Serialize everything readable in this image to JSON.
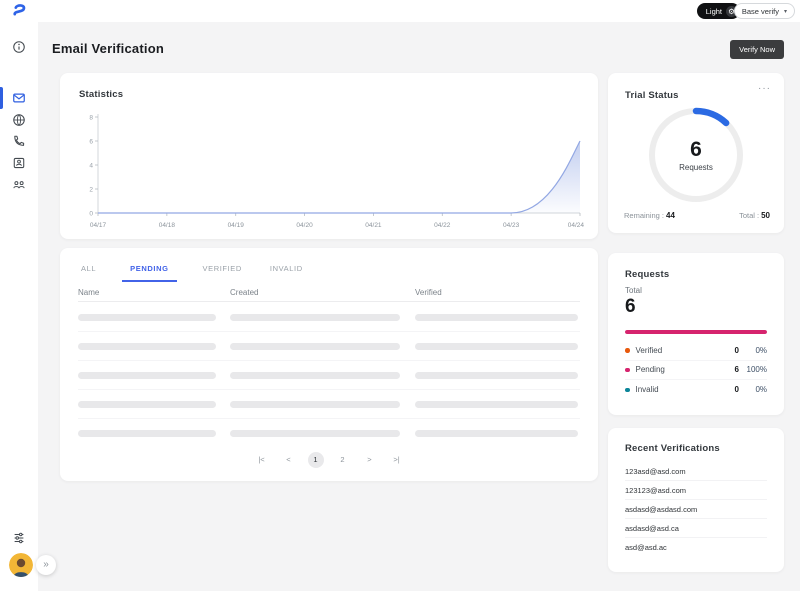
{
  "topbar": {
    "theme_toggle_label": "Light",
    "gear_icon": "⚙",
    "workspace_selector": "Base verify",
    "caret_icon": "▾",
    "menu_icon": "···",
    "expand_icon": "»"
  },
  "sidebar": {
    "logo_icon": "brand-logo",
    "accent_color": "#2f5fe0",
    "items": [
      {
        "icon": "info-icon",
        "active": false
      },
      {
        "icon": "mail-icon",
        "active": true
      },
      {
        "icon": "globe-icon",
        "active": false
      },
      {
        "icon": "phone-icon",
        "active": false
      },
      {
        "icon": "contacts-icon",
        "active": false
      },
      {
        "icon": "team-icon",
        "active": false
      }
    ],
    "bottom_items": [
      {
        "icon": "filters-icon"
      },
      {
        "icon": "avatar",
        "bg_color": "#f2b636"
      },
      {
        "icon": "expand-icon"
      }
    ]
  },
  "header": {
    "title": "Email Verification",
    "verify_button": "Verify Now"
  },
  "chart_data": {
    "type": "area",
    "title": "Statistics",
    "x": [
      "04/17",
      "04/18",
      "04/19",
      "04/20",
      "04/21",
      "04/22",
      "04/23",
      "04/24"
    ],
    "values": [
      0,
      0,
      0,
      0,
      0,
      0,
      0,
      6
    ],
    "ylim": [
      0,
      8
    ],
    "yticks": [
      0,
      2,
      4,
      6,
      8
    ],
    "xlabel": "",
    "ylabel": "",
    "grid": false,
    "legend": false,
    "line_color": "#92a7e3"
  },
  "trial_status": {
    "title": "Trial Status",
    "value": 6,
    "center_label": "Requests",
    "remaining_label": "Remaining :",
    "remaining": "44",
    "total_label": "Total :",
    "total": 50,
    "ring_color": "#2b6ae3",
    "track_color": "#ededed"
  },
  "table": {
    "tabs": [
      "ALL",
      "PENDING",
      "VERIFIED",
      "INVALID"
    ],
    "active_tab": "PENDING",
    "columns": [
      "Name",
      "Created",
      "Verified"
    ],
    "skeleton_rows": 5,
    "pagination": {
      "first_icon": "|<",
      "prev_icon": "<",
      "pages": [
        "1",
        "2"
      ],
      "active_page": "1",
      "next_icon": ">",
      "last_icon": ">|"
    }
  },
  "requests": {
    "title": "Requests",
    "total_label": "Total",
    "total": 6,
    "bar": {
      "percent": 100,
      "color": "#d6246e"
    },
    "rows": [
      {
        "label": "Verified",
        "count": "0",
        "percent": "0%",
        "color": "#e8590c"
      },
      {
        "label": "Pending",
        "count": "6",
        "percent": "100%",
        "color": "#d6246e"
      },
      {
        "label": "Invalid",
        "count": "0",
        "percent": "0%",
        "color": "#0c8599"
      }
    ]
  },
  "recent": {
    "title": "Recent Verifications",
    "emails": [
      "123asd@asd.com",
      "123123@asd.com",
      "asdasd@asdasd.com",
      "asdasd@asd.ca",
      "asd@asd.ac"
    ]
  }
}
